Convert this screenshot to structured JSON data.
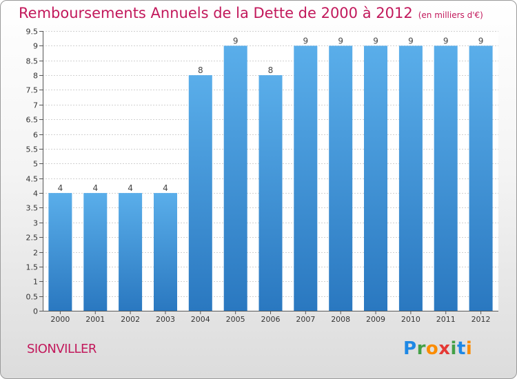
{
  "header": {
    "title": "Remboursements Annuels de la Dette de 2000 à 2012",
    "subtitle": "(en milliers d'€)"
  },
  "footer": {
    "place": "SIONVILLER",
    "brand_letters": [
      {
        "ch": "P",
        "color": "#1e88e5"
      },
      {
        "ch": "r",
        "color": "#43a047"
      },
      {
        "ch": "o",
        "color": "#fb8c00"
      },
      {
        "ch": "x",
        "color": "#e53935"
      },
      {
        "ch": "i",
        "color": "#43a047"
      },
      {
        "ch": "t",
        "color": "#1e88e5"
      },
      {
        "ch": "i",
        "color": "#fb8c00"
      }
    ]
  },
  "chart_data": {
    "type": "bar",
    "title": "Remboursements Annuels de la Dette de 2000 à 2012",
    "subtitle": "(en milliers d'€)",
    "categories": [
      "2000",
      "2001",
      "2002",
      "2003",
      "2004",
      "2005",
      "2006",
      "2007",
      "2008",
      "2009",
      "2010",
      "2011",
      "2012"
    ],
    "values": [
      4,
      4,
      4,
      4,
      8,
      9,
      8,
      9,
      9,
      9,
      9,
      9,
      9
    ],
    "ylim": [
      0,
      9.5
    ],
    "yticks": [
      "0",
      "0.5",
      "1",
      "1.5",
      "2",
      "2.5",
      "3",
      "3.5",
      "4",
      "4.5",
      "5",
      "5.5",
      "6",
      "6.5",
      "7",
      "7.5",
      "8",
      "8.5",
      "9",
      "9.5"
    ],
    "grid": true,
    "bar_color": "#3d8fd6",
    "bar_color_light": "#5aaeea",
    "bar_color_dark": "#2a78c0"
  }
}
